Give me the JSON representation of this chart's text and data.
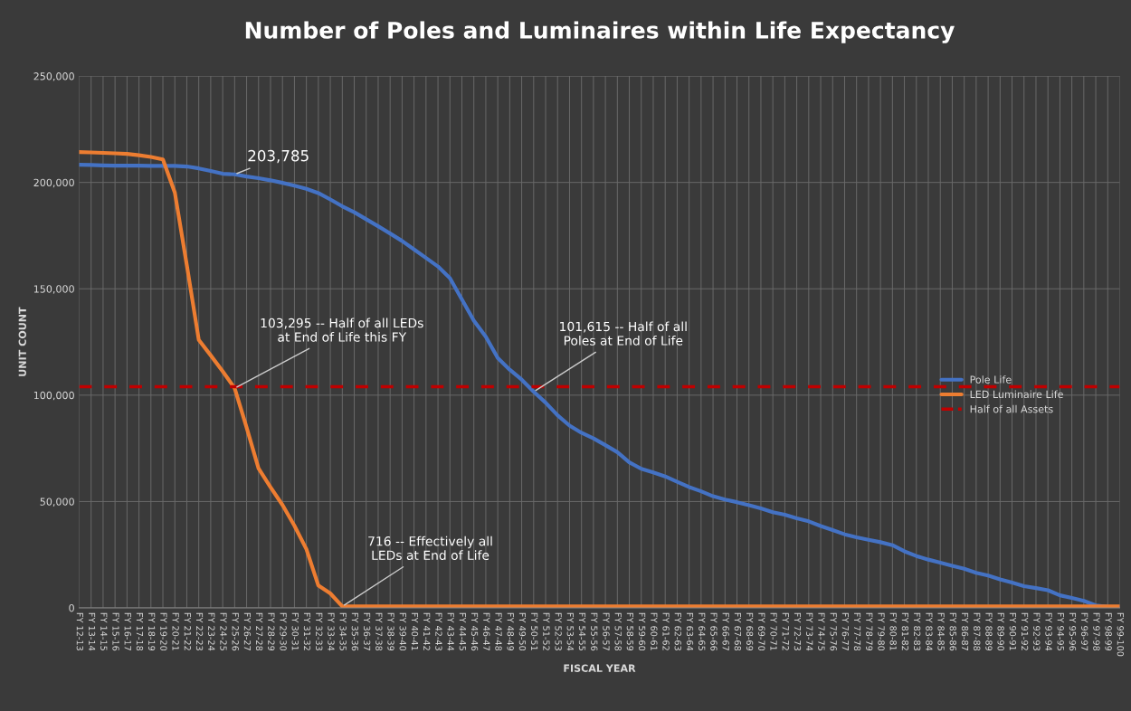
{
  "chart_data": {
    "type": "line",
    "title": "Number of Poles and Luminaires within Life Expectancy",
    "xlabel": "FISCAL YEAR",
    "ylabel": "UNIT COUNT",
    "categories": [
      "FY 12-13",
      "FY 13-14",
      "FY 14-15",
      "FY 15-16",
      "FY 16-17",
      "FY 17-18",
      "FY 18-19",
      "FY 19-20",
      "FY 20-21",
      "FY 21-22",
      "FY 22-23",
      "FY 23-24",
      "FY 24-25",
      "FY 25-26",
      "FY 26-27",
      "FY 27-28",
      "FY 28-29",
      "FY 29-30",
      "FY 30-31",
      "FY 31-32",
      "FY 32-33",
      "FY 33-34",
      "FY 34-35",
      "FY 35-36",
      "FY 36-37",
      "FY 37-38",
      "FY 38-39",
      "FY 39-40",
      "FY 40-41",
      "FY 41-42",
      "FY 42-43",
      "FY 43-44",
      "FY 44-45",
      "FY 45-46",
      "FY 46-47",
      "FY 47-48",
      "FY 48-49",
      "FY 49-50",
      "FY 50-51",
      "FY 51-52",
      "FY 52-53",
      "FY 53-54",
      "FY 54-55",
      "FY 55-56",
      "FY 56-57",
      "FY 57-58",
      "FY 58-59",
      "FY 59-60",
      "FY 60-61",
      "FY 61-62",
      "FY 62-63",
      "FY 63-64",
      "FY 64-65",
      "FY 65-66",
      "FY 66-67",
      "FY 67-68",
      "FY 68-69",
      "FY 69-70",
      "FY 70-71",
      "FY 71-72",
      "FY 72-73",
      "FY 73-74",
      "FY 74-75",
      "FY 75-76",
      "FY 76-77",
      "FY 77-78",
      "FY 78-79",
      "FY 79-80",
      "FY 80-81",
      "FY 81-82",
      "FY 82-83",
      "FY 83-84",
      "FY 84-85",
      "FY 85-86",
      "FY 86-87",
      "FY 87-88",
      "FY 88-89",
      "FY 89-90",
      "FY 90-91",
      "FY 91-92",
      "FY 92-93",
      "FY 93-94",
      "FY 94-95",
      "FY 95-96",
      "FY 96-97",
      "FY 97-98",
      "FY 98-99",
      "FY 99-100"
    ],
    "series": [
      {
        "name": "Pole Life",
        "color": "#4472c4",
        "values": [
          208300,
          208200,
          208000,
          207900,
          207900,
          207900,
          207800,
          207800,
          207800,
          207500,
          206600,
          205400,
          204100,
          203785,
          202800,
          202000,
          201000,
          199800,
          198500,
          197000,
          195000,
          192000,
          188800,
          186000,
          182700,
          179400,
          176000,
          172500,
          168500,
          164500,
          160500,
          155000,
          145000,
          135000,
          127500,
          117500,
          112000,
          107300,
          101615,
          96500,
          90500,
          85700,
          82300,
          79700,
          76500,
          73200,
          68400,
          65400,
          63700,
          61800,
          59300,
          56800,
          54800,
          52500,
          50900,
          49700,
          48300,
          46800,
          45000,
          43800,
          42100,
          40700,
          38500,
          36600,
          34600,
          33200,
          32000,
          30900,
          29500,
          26600,
          24400,
          22700,
          21300,
          19800,
          18400,
          16500,
          15200,
          13400,
          11900,
          10200,
          9300,
          8300,
          5900,
          4700,
          3300,
          1200,
          500,
          300
        ]
      },
      {
        "name": "LED Luminaire Life",
        "color": "#ed7d31",
        "values": [
          214300,
          214100,
          213900,
          213700,
          213400,
          212800,
          212000,
          210800,
          195200,
          161100,
          126000,
          118700,
          111200,
          103295,
          84800,
          65500,
          56700,
          48400,
          38600,
          27600,
          10500,
          6800,
          716,
          716,
          716,
          716,
          716,
          716,
          716,
          716,
          716,
          716,
          716,
          716,
          716,
          716,
          716,
          716,
          716,
          716,
          716,
          716,
          716,
          716,
          716,
          716,
          716,
          716,
          716,
          716,
          716,
          716,
          716,
          716,
          716,
          716,
          716,
          716,
          716,
          716,
          716,
          716,
          716,
          716,
          716,
          716,
          716,
          716,
          716,
          716,
          716,
          716,
          716,
          716,
          716,
          716,
          716,
          716,
          716,
          716,
          716,
          716,
          716,
          716,
          716,
          716,
          716,
          716
        ]
      }
    ],
    "ref_lines": [
      {
        "axis": "y",
        "value": 104000,
        "label": "Half of all Assets",
        "color": "#c00000",
        "line_style": "dashed"
      }
    ],
    "annotations": [
      {
        "text": "203,785",
        "x": "FY 25-26",
        "y": 203785
      },
      {
        "text": "103,295 -- Half of all LEDs\nat End of Life this FY",
        "x": "FY 25-26",
        "y": 103295
      },
      {
        "text": "101,615 -- Half of all\nPoles at End of Life",
        "x": "FY 50-51",
        "y": 101615
      },
      {
        "text": "716 -- Effectively all\nLEDs at End of Life",
        "x": "FY 34-35",
        "y": 716
      }
    ],
    "ylim": [
      0,
      250000
    ],
    "yticks": [
      {
        "value": 0,
        "label": "0"
      },
      {
        "value": 50000,
        "label": "50,000"
      },
      {
        "value": 100000,
        "label": "100,000"
      },
      {
        "value": 150000,
        "label": "150,000"
      },
      {
        "value": 200000,
        "label": "200,000"
      },
      {
        "value": 250000,
        "label": "250,000"
      }
    ],
    "grid": true,
    "legend": "right",
    "marker": "none",
    "line_style": "solid"
  }
}
